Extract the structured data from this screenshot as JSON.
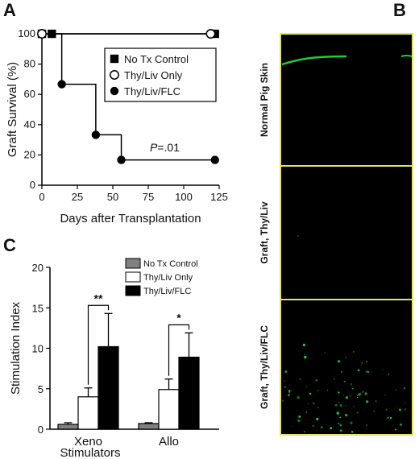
{
  "panels": {
    "a": "A",
    "b": "B",
    "c": "C"
  },
  "chart_data": [
    {
      "panel": "A",
      "type": "line",
      "step": true,
      "xlabel": "Days after Transplantation",
      "ylabel": "Graft Survival (%)",
      "xlim": [
        0,
        125
      ],
      "ylim": [
        0,
        100
      ],
      "xticks": [
        0,
        25,
        50,
        75,
        100,
        125
      ],
      "yticks": [
        0,
        20,
        40,
        60,
        80,
        100
      ],
      "legend_position": "top-right",
      "annotation": "P=.01",
      "annotation_italic_part": "P",
      "annotation_rest": "=.01",
      "series": [
        {
          "name": "No Tx Control",
          "marker": "filled-square",
          "color": "#000000",
          "x": [
            0,
            7,
            122
          ],
          "y": [
            100,
            100,
            100
          ]
        },
        {
          "name": "Thy/Liv Only",
          "marker": "open-circle",
          "color": "#000000",
          "x": [
            0,
            119
          ],
          "y": [
            100,
            100
          ]
        },
        {
          "name": "Thy/Liv/FLC",
          "marker": "filled-circle",
          "color": "#000000",
          "x": [
            0,
            14,
            38,
            56,
            122
          ],
          "y": [
            100,
            66.7,
            33.3,
            16.7,
            16.7
          ]
        }
      ]
    },
    {
      "panel": "C",
      "type": "bar",
      "xlabel": "Stimulators",
      "ylabel": "Stimulation Index",
      "ylim": [
        0,
        20
      ],
      "yticks": [
        0,
        5,
        10,
        15,
        20
      ],
      "categories": [
        "Xeno",
        "Allo"
      ],
      "legend_position": "top-right",
      "series": [
        {
          "name": "No Tx Control",
          "color": "#808080",
          "values": [
            0.6,
            0.7
          ],
          "errors": [
            0.2,
            0.1
          ]
        },
        {
          "name": "Thy/Liv Only",
          "color": "#ffffff",
          "values": [
            4.0,
            4.9
          ],
          "errors": [
            1.1,
            1.3
          ]
        },
        {
          "name": "Thy/Liv/FLC",
          "color": "#000000",
          "values": [
            10.2,
            8.9
          ],
          "errors": [
            4.1,
            3.0
          ]
        }
      ],
      "significance": [
        "**",
        "*"
      ]
    }
  ],
  "panel_b": {
    "border_color": "#e8e060",
    "background": "#000000",
    "fluorescence_color": "#22cc33",
    "rows": [
      {
        "label": "Normal Pig Skin"
      },
      {
        "label": "Graft, Thy/Liv"
      },
      {
        "label": "Graft, Thy/Liv/FLC"
      }
    ]
  }
}
